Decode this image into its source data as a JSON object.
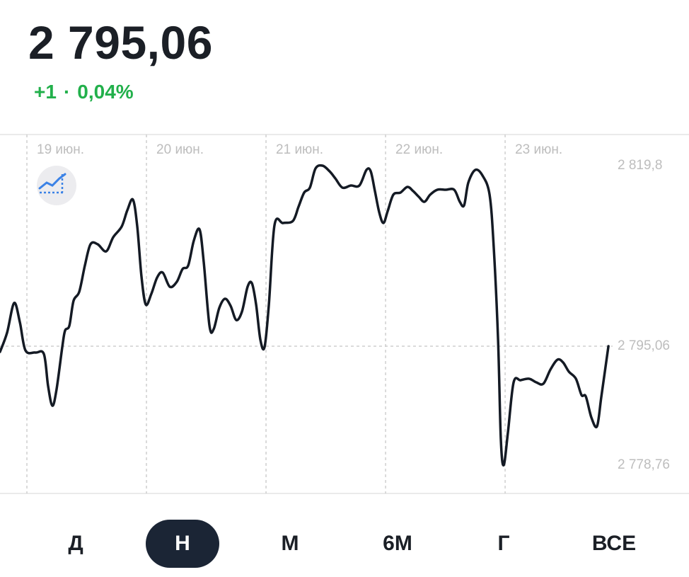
{
  "header": {
    "price": "2 795,06",
    "change": "+1",
    "separator": "·",
    "change_percent": "0,04%"
  },
  "chart_data": {
    "type": "line",
    "color": "#141a24",
    "x": [
      18.775,
      18.834,
      18.893,
      18.941,
      18.988,
      19.071,
      19.142,
      19.177,
      19.213,
      19.248,
      19.296,
      19.319,
      19.355,
      19.39,
      19.438,
      19.485,
      19.532,
      19.592,
      19.663,
      19.722,
      19.793,
      19.84,
      19.887,
      19.923,
      19.958,
      19.994,
      20.041,
      20.089,
      20.136,
      20.195,
      20.254,
      20.302,
      20.349,
      20.396,
      20.444,
      20.479,
      20.527,
      20.562,
      20.609,
      20.657,
      20.704,
      20.751,
      20.799,
      20.846,
      20.882,
      20.917,
      20.953,
      20.988,
      21.024,
      21.071,
      21.142,
      21.225,
      21.272,
      21.319,
      21.367,
      21.414,
      21.473,
      21.532,
      21.58,
      21.639,
      21.71,
      21.781,
      21.84,
      21.876,
      21.911,
      21.947,
      21.982,
      22.018,
      22.065,
      22.124,
      22.183,
      22.231,
      22.278,
      22.325,
      22.373,
      22.432,
      22.503,
      22.574,
      22.621,
      22.657,
      22.692,
      22.751,
      22.811,
      22.87,
      22.905,
      22.941,
      22.964,
      22.988,
      23.024,
      23.071,
      23.13,
      23.201,
      23.26,
      23.32,
      23.379,
      23.438,
      23.485,
      23.533,
      23.592,
      23.639,
      23.675,
      23.722,
      23.769,
      23.805,
      23.864
    ],
    "values": [
      2794.28,
      2796.9,
      2800.98,
      2798.36,
      2794.48,
      2794.19,
      2793.99,
      2789.63,
      2786.91,
      2789.14,
      2794.96,
      2797.19,
      2797.87,
      2801.27,
      2802.53,
      2806.12,
      2809.03,
      2809.03,
      2808.06,
      2810.0,
      2811.46,
      2813.69,
      2815.14,
      2811.46,
      2804.66,
      2800.78,
      2802.24,
      2804.47,
      2805.15,
      2803.21,
      2803.89,
      2805.64,
      2806.12,
      2809.52,
      2811.07,
      2806.61,
      2797.87,
      2797.39,
      2800.3,
      2801.56,
      2800.59,
      2798.65,
      2799.81,
      2803.21,
      2803.69,
      2800.78,
      2795.93,
      2794.96,
      2800.78,
      2811.65,
      2811.94,
      2812.23,
      2814.17,
      2816.11,
      2816.79,
      2819.41,
      2819.8,
      2819.02,
      2818.05,
      2816.79,
      2817.08,
      2817.08,
      2819.22,
      2819.02,
      2816.31,
      2813.4,
      2811.94,
      2813.59,
      2815.82,
      2816.11,
      2816.89,
      2816.31,
      2815.53,
      2814.85,
      2815.82,
      2816.5,
      2816.5,
      2816.5,
      2814.85,
      2814.37,
      2817.47,
      2819.22,
      2818.44,
      2815.82,
      2808.55,
      2795.93,
      2782.35,
      2778.76,
      2783.32,
      2790.11,
      2790.4,
      2790.6,
      2790.11,
      2789.92,
      2791.86,
      2793.22,
      2792.83,
      2791.57,
      2790.6,
      2788.37,
      2788.17,
      2785.26,
      2784.1,
      2788.17,
      2795.06
    ],
    "xlim": [
      18.775,
      24.538
    ],
    "xticks": [
      {
        "value": 19,
        "label": "19 июн."
      },
      {
        "value": 20,
        "label": "20 июн."
      },
      {
        "value": 21,
        "label": "21 июн."
      },
      {
        "value": 22,
        "label": "22 июн."
      },
      {
        "value": 23,
        "label": "23 июн."
      }
    ],
    "ylim": [
      2774.88,
      2824.07
    ],
    "yticks": [
      {
        "value": 2819.8,
        "label": "2 819,8"
      },
      {
        "value": 2795.06,
        "label": "2 795,06"
      },
      {
        "value": 2778.76,
        "label": "2 778,76"
      }
    ],
    "hline": 2795.06,
    "grid": true
  },
  "periods": [
    "Д",
    "Н",
    "М",
    "6М",
    "Г",
    "ВСЕ"
  ],
  "selected_period": 1
}
